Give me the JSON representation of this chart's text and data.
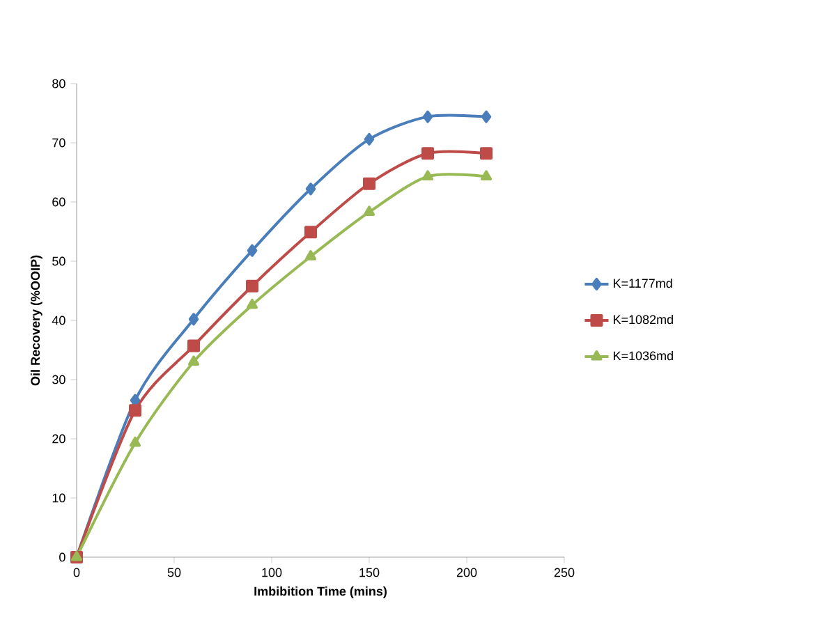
{
  "chart_data": {
    "type": "line",
    "xlabel": "Imbibition Time (mins)",
    "ylabel": "Oil Recovery (%OOIP)",
    "x": [
      0,
      30,
      60,
      90,
      120,
      150,
      180,
      210
    ],
    "series": [
      {
        "name": "K=1177md",
        "color": "#4a7ebb",
        "marker": "diamond",
        "values": [
          0,
          26.5,
          40.2,
          51.8,
          62.2,
          70.6,
          74.4,
          74.4
        ]
      },
      {
        "name": "K=1082md",
        "color": "#be4b48",
        "marker": "square",
        "values": [
          0,
          24.8,
          35.7,
          45.8,
          54.9,
          63.1,
          68.2,
          68.2
        ]
      },
      {
        "name": "K=1036md",
        "color": "#98b954",
        "marker": "triangle",
        "values": [
          0,
          19.3,
          33,
          42.6,
          50.8,
          58.3,
          64.3,
          64.3
        ]
      }
    ],
    "xlim": [
      0,
      250
    ],
    "xticks": [
      0,
      50,
      100,
      150,
      200,
      250
    ],
    "ylim": [
      0,
      80
    ],
    "yticks": [
      0,
      10,
      20,
      30,
      40,
      50,
      60,
      70,
      80
    ],
    "grid": false,
    "legend": "right",
    "line_style": "solid"
  }
}
